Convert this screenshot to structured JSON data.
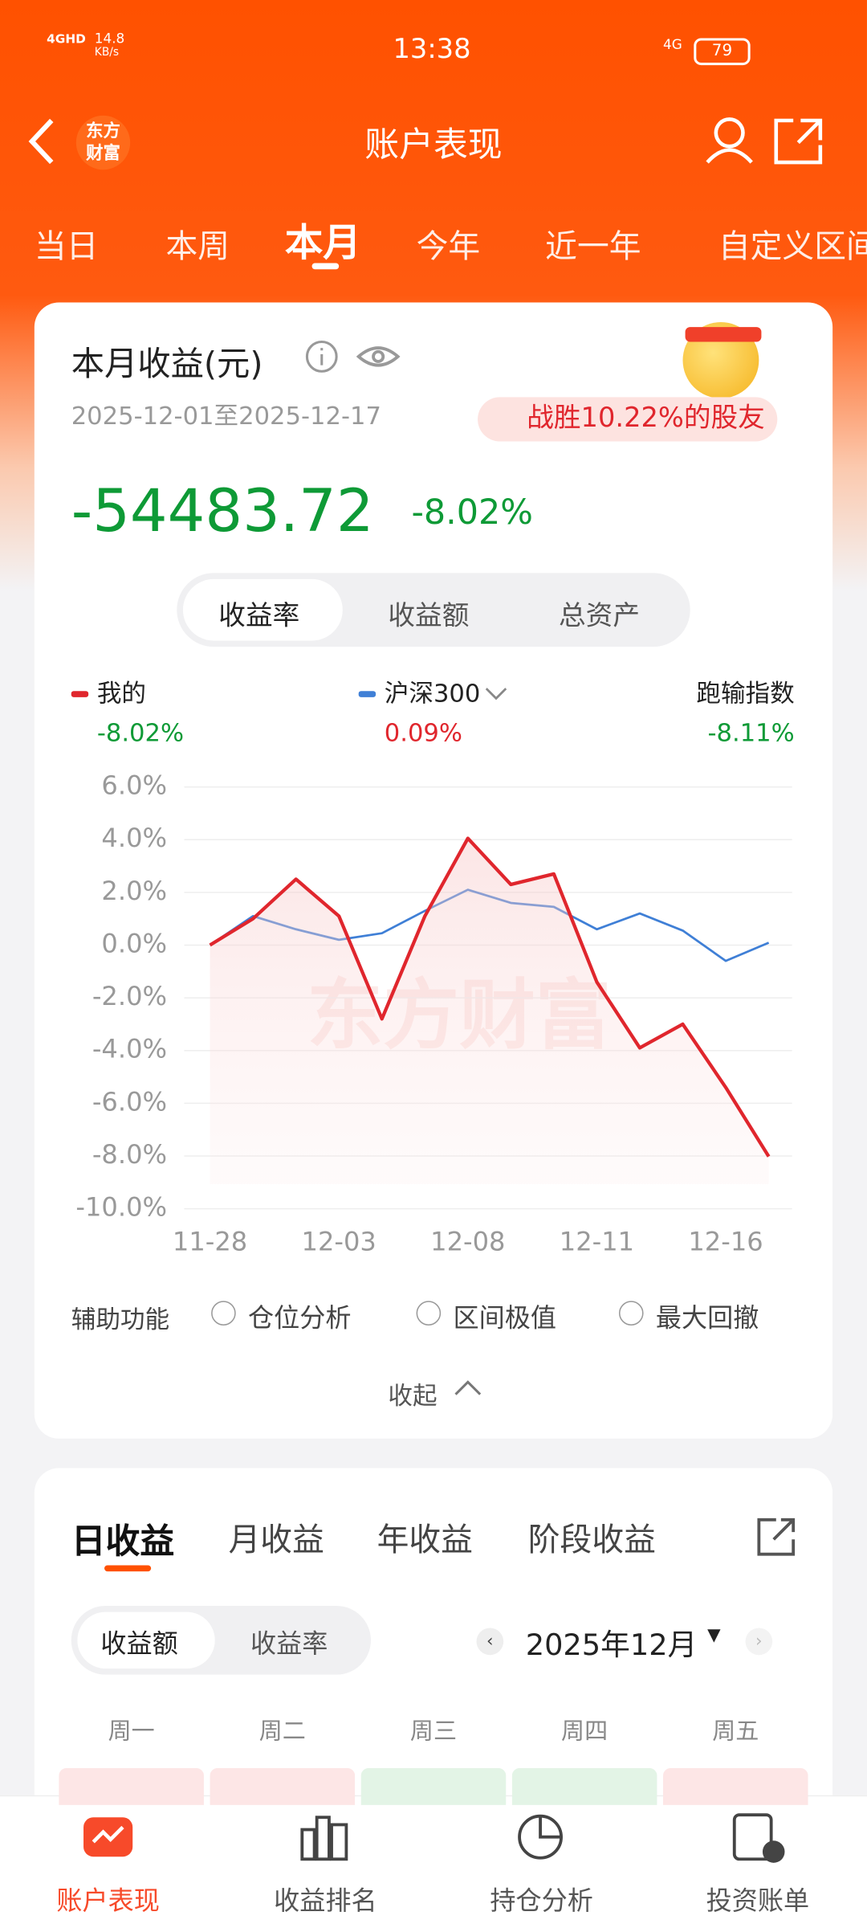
{
  "status": {
    "signal": "4GHD",
    "speed": "14.8",
    "speed_unit": "KB/s",
    "time": "13:38",
    "net": "4G",
    "battery": "79"
  },
  "nav": {
    "logo": "东方\n财富",
    "title": "账户表现"
  },
  "period_tabs": [
    "当日",
    "本周",
    "本月",
    "今年",
    "近一年",
    "自定义区间"
  ],
  "card": {
    "title": "本月收益(元)",
    "date_range": "2025-12-01至2025-12-17",
    "beat": "战胜10.22%的股友",
    "amount": "-54483.72",
    "rate": "-8.02%",
    "metric_tabs": [
      "收益率",
      "收益额",
      "总资产"
    ]
  },
  "chart_data": {
    "type": "line",
    "watermark": "东方财富",
    "categories": [
      "11-28",
      null,
      null,
      "12-03",
      null,
      null,
      "12-08",
      null,
      null,
      "12-11",
      null,
      null,
      "12-16",
      null
    ],
    "series": [
      {
        "name": "我的",
        "color": "#e0262d",
        "values": [
          0,
          1.0,
          2.5,
          1.1,
          -2.8,
          1.1,
          4.05,
          2.3,
          2.7,
          -1.4,
          -3.9,
          -3.0,
          -5.4,
          -8.02
        ]
      },
      {
        "name": "沪深300",
        "color": "#3f7fd6",
        "values": [
          0,
          1.1,
          0.6,
          0.2,
          0.45,
          1.3,
          2.1,
          1.6,
          1.45,
          0.6,
          1.2,
          0.55,
          -0.6,
          0.09
        ]
      }
    ],
    "legend_values": [
      "-8.02%",
      "0.09%"
    ],
    "excess": {
      "label": "跑输指数",
      "value": "-8.11%"
    },
    "ylim": [
      -10,
      6
    ],
    "yticks": [
      {
        "value": 6,
        "label": "6.0%"
      },
      {
        "value": 4,
        "label": "4.0%"
      },
      {
        "value": 2,
        "label": "2.0%"
      },
      {
        "value": 0,
        "label": "0.0%"
      },
      {
        "value": -2,
        "label": "-2.0%"
      },
      {
        "value": -4,
        "label": "-4.0%"
      },
      {
        "value": -6,
        "label": "-6.0%"
      },
      {
        "value": -8,
        "label": "-8.0%"
      },
      {
        "value": -10,
        "label": "-10.0%"
      }
    ],
    "grid": true
  },
  "tools": {
    "label": "辅助功能",
    "options": [
      "仓位分析",
      "区间极值",
      "最大回撤"
    ],
    "collapse": "收起"
  },
  "income": {
    "tabs": [
      "日收益",
      "月收益",
      "年收益",
      "阶段收益"
    ],
    "toggle": [
      "收益额",
      "收益率"
    ],
    "month": "2025年12月",
    "weekdays": [
      "周一",
      "周二",
      "周三",
      "周四",
      "周五"
    ]
  },
  "bottom_nav": [
    "账户表现",
    "收益排名",
    "持仓分析",
    "投资账单"
  ]
}
